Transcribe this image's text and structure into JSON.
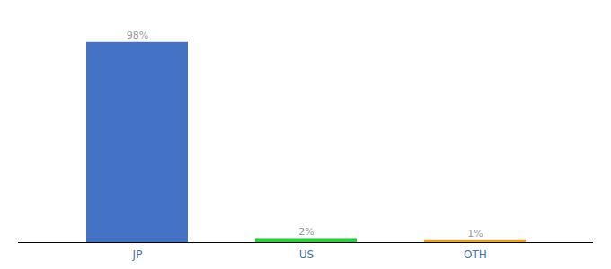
{
  "chart_data": {
    "type": "bar",
    "categories": [
      "JP",
      "US",
      "OTH"
    ],
    "values": [
      98,
      2,
      1
    ],
    "value_labels": [
      "98%",
      "2%",
      "1%"
    ],
    "colors": [
      "#4472c4",
      "#2ecc40",
      "#f0a500"
    ],
    "ylim": [
      0,
      108
    ],
    "data_labels": true,
    "tick_labels": "x"
  }
}
